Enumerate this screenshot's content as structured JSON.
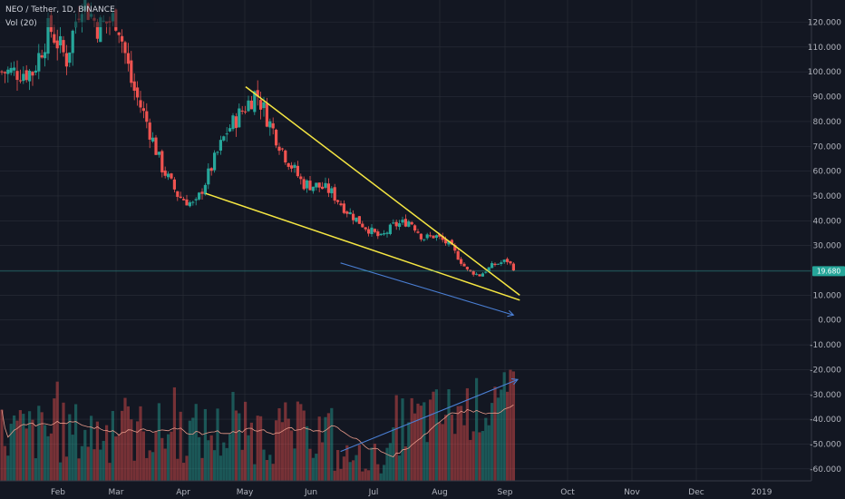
{
  "legend": {
    "symbol_line": "NEO / Tether, 1D, BINANCE",
    "indicator_line": "Vol (20)"
  },
  "price_label": "19.680",
  "colors": {
    "background": "#131722",
    "grid": "#2a2e39",
    "up": "#26a69a",
    "down": "#ef5350",
    "trendline": "#f5e642",
    "arrow": "#4a7fd4",
    "volume_ma": "#e89a8a",
    "price_tag": "#26a69a"
  },
  "chart_data": {
    "type": "candlestick",
    "title": "NEO / Tether, 1D, BINANCE",
    "x_tick_labels": [
      "Feb",
      "Mar",
      "Apr",
      "May",
      "Jun",
      "Jul",
      "Aug",
      "Sep",
      "Oct",
      "Nov",
      "Dec",
      "2019"
    ],
    "y_tick_labels": [
      "120.000",
      "110.000",
      "100.000",
      "90.000",
      "80.000",
      "70.000",
      "60.000",
      "50.000",
      "40.000",
      "30.000",
      "20.000",
      "10.000",
      "0.000",
      "-10.000",
      "-20.000",
      "-30.000",
      "-40.000",
      "-50.000",
      "-60.000"
    ],
    "ylim": [
      -60,
      120
    ],
    "current_price": 19.68,
    "price_trend_points": [
      [
        "Jan 20",
        100
      ],
      [
        "Jan 28",
        118
      ],
      [
        "Feb 05",
        105
      ],
      [
        "Feb 12",
        130
      ],
      [
        "Feb 20",
        118
      ],
      [
        "Mar 01",
        122
      ],
      [
        "Mar 08",
        95
      ],
      [
        "Mar 15",
        80
      ],
      [
        "Mar 22",
        62
      ],
      [
        "Mar 30",
        50
      ],
      [
        "Apr 07",
        46
      ],
      [
        "Apr 14",
        60
      ],
      [
        "Apr 22",
        76
      ],
      [
        "Apr 30",
        85
      ],
      [
        "May 06",
        92
      ],
      [
        "May 12",
        80
      ],
      [
        "May 20",
        66
      ],
      [
        "May 28",
        55
      ],
      [
        "Jun 04",
        54
      ],
      [
        "Jun 10",
        52
      ],
      [
        "Jun 18",
        44
      ],
      [
        "Jun 26",
        38
      ],
      [
        "Jul 04",
        33
      ],
      [
        "Jul 10",
        38
      ],
      [
        "Jul 18",
        40
      ],
      [
        "Jul 24",
        33
      ],
      [
        "Jul 30",
        34
      ],
      [
        "Aug 06",
        30
      ],
      [
        "Aug 14",
        20
      ],
      [
        "Aug 20",
        18
      ],
      [
        "Aug 26",
        22
      ],
      [
        "Sep 02",
        24
      ],
      [
        "Sep 06",
        20
      ]
    ],
    "annotations": [
      {
        "type": "trendline",
        "from": [
          "May 01",
          94
        ],
        "to": [
          "Sep 08",
          10
        ]
      },
      {
        "type": "trendline",
        "from": [
          "Apr 12",
          51
        ],
        "to": [
          "Sep 08",
          8
        ]
      },
      {
        "type": "arrow",
        "from": [
          "Jun 15",
          23
        ],
        "to": [
          "Sep 05",
          2
        ]
      },
      {
        "type": "arrow",
        "from": [
          "Jun 15",
          -53
        ],
        "to": [
          "Sep 07",
          -24
        ]
      }
    ]
  }
}
